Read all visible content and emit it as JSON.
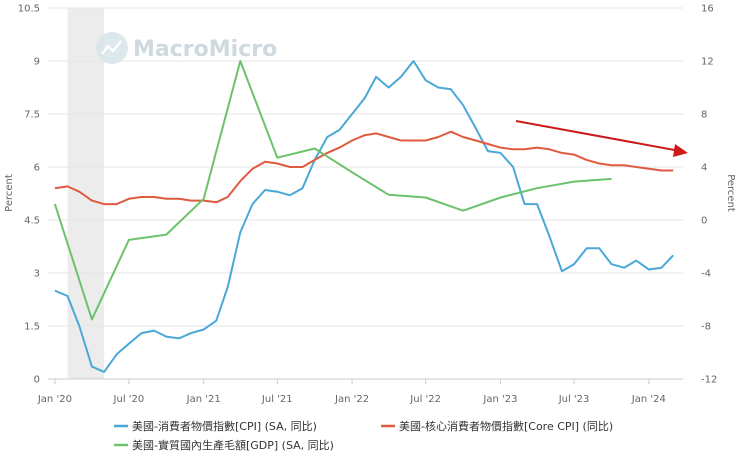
{
  "watermark": {
    "text": "MacroMicro"
  },
  "chart_data": {
    "type": "line",
    "ylabel": "Percent",
    "y2label": "Percent",
    "ylim": [
      0,
      10.5
    ],
    "y2lim": [
      -12,
      16
    ],
    "yticks": [
      "0",
      "1.5",
      "3",
      "4.5",
      "6",
      "7.5",
      "9",
      "10.5"
    ],
    "y2ticks": [
      "-12",
      "-8",
      "-4",
      "0",
      "4",
      "8",
      "12",
      "16"
    ],
    "xlim": [
      "2019-12-15",
      "2024-03-25"
    ],
    "xticks": [
      {
        "label": "Jan '20",
        "date": "2020-01-01"
      },
      {
        "label": "Jul '20",
        "date": "2020-07-01"
      },
      {
        "label": "Jan '21",
        "date": "2021-01-01"
      },
      {
        "label": "Jul '21",
        "date": "2021-07-01"
      },
      {
        "label": "Jan '22",
        "date": "2022-01-01"
      },
      {
        "label": "Jul '22",
        "date": "2022-07-01"
      },
      {
        "label": "Jan '23",
        "date": "2023-01-01"
      },
      {
        "label": "Jul '23",
        "date": "2023-07-01"
      },
      {
        "label": "Jan '24",
        "date": "2024-01-01"
      }
    ],
    "recession_band": [
      "2020-02-01",
      "2020-05-01"
    ],
    "legend_position": "bottom",
    "series": [
      {
        "name": "美國-消費者物價指數[CPI] (SA, 同比)",
        "color": "#4aa8d8",
        "axis": "left",
        "points": [
          [
            "2020-01-01",
            2.5
          ],
          [
            "2020-02-01",
            2.35
          ],
          [
            "2020-03-01",
            1.5
          ],
          [
            "2020-04-01",
            0.35
          ],
          [
            "2020-05-01",
            0.2
          ],
          [
            "2020-06-01",
            0.7
          ],
          [
            "2020-07-01",
            1.0
          ],
          [
            "2020-08-01",
            1.3
          ],
          [
            "2020-09-01",
            1.37
          ],
          [
            "2020-10-01",
            1.2
          ],
          [
            "2020-11-01",
            1.15
          ],
          [
            "2020-12-01",
            1.3
          ],
          [
            "2021-01-01",
            1.4
          ],
          [
            "2021-02-01",
            1.65
          ],
          [
            "2021-03-01",
            2.6
          ],
          [
            "2021-04-01",
            4.15
          ],
          [
            "2021-05-01",
            4.95
          ],
          [
            "2021-06-01",
            5.35
          ],
          [
            "2021-07-01",
            5.3
          ],
          [
            "2021-08-01",
            5.2
          ],
          [
            "2021-09-01",
            5.4
          ],
          [
            "2021-10-01",
            6.2
          ],
          [
            "2021-11-01",
            6.85
          ],
          [
            "2021-12-01",
            7.05
          ],
          [
            "2022-01-01",
            7.5
          ],
          [
            "2022-02-01",
            7.95
          ],
          [
            "2022-03-01",
            8.55
          ],
          [
            "2022-04-01",
            8.25
          ],
          [
            "2022-05-01",
            8.55
          ],
          [
            "2022-06-01",
            9.0
          ],
          [
            "2022-07-01",
            8.45
          ],
          [
            "2022-08-01",
            8.25
          ],
          [
            "2022-09-01",
            8.2
          ],
          [
            "2022-10-01",
            7.75
          ],
          [
            "2022-11-01",
            7.1
          ],
          [
            "2022-12-01",
            6.45
          ],
          [
            "2023-01-01",
            6.4
          ],
          [
            "2023-02-01",
            6.0
          ],
          [
            "2023-03-01",
            4.95
          ],
          [
            "2023-04-01",
            4.95
          ],
          [
            "2023-05-01",
            4.05
          ],
          [
            "2023-06-01",
            3.05
          ],
          [
            "2023-07-01",
            3.25
          ],
          [
            "2023-08-01",
            3.7
          ],
          [
            "2023-09-01",
            3.7
          ],
          [
            "2023-10-01",
            3.25
          ],
          [
            "2023-11-01",
            3.15
          ],
          [
            "2023-12-01",
            3.35
          ],
          [
            "2024-01-01",
            3.1
          ],
          [
            "2024-02-01",
            3.15
          ],
          [
            "2024-03-01",
            3.5
          ]
        ]
      },
      {
        "name": "美國-核心消費者物價指數[Core CPI] (同比)",
        "color": "#e05a40",
        "axis": "left",
        "points": [
          [
            "2020-01-01",
            5.4
          ],
          [
            "2020-02-01",
            5.45
          ],
          [
            "2020-03-01",
            5.3
          ],
          [
            "2020-04-01",
            5.05
          ],
          [
            "2020-05-01",
            4.95
          ],
          [
            "2020-06-01",
            4.95
          ],
          [
            "2020-07-01",
            5.1
          ],
          [
            "2020-08-01",
            5.15
          ],
          [
            "2020-09-01",
            5.15
          ],
          [
            "2020-10-01",
            5.1
          ],
          [
            "2020-11-01",
            5.1
          ],
          [
            "2020-12-01",
            5.05
          ],
          [
            "2021-01-01",
            5.05
          ],
          [
            "2021-02-01",
            5.0
          ],
          [
            "2021-03-01",
            5.15
          ],
          [
            "2021-04-01",
            5.6
          ],
          [
            "2021-05-01",
            5.95
          ],
          [
            "2021-06-01",
            6.15
          ],
          [
            "2021-07-01",
            6.1
          ],
          [
            "2021-08-01",
            6.0
          ],
          [
            "2021-09-01",
            6.0
          ],
          [
            "2021-10-01",
            6.2
          ],
          [
            "2021-11-01",
            6.4
          ],
          [
            "2021-12-01",
            6.55
          ],
          [
            "2022-01-01",
            6.75
          ],
          [
            "2022-02-01",
            6.9
          ],
          [
            "2022-03-01",
            6.95
          ],
          [
            "2022-04-01",
            6.85
          ],
          [
            "2022-05-01",
            6.75
          ],
          [
            "2022-06-01",
            6.75
          ],
          [
            "2022-07-01",
            6.75
          ],
          [
            "2022-08-01",
            6.85
          ],
          [
            "2022-09-01",
            7.0
          ],
          [
            "2022-10-01",
            6.85
          ],
          [
            "2022-11-01",
            6.75
          ],
          [
            "2022-12-01",
            6.65
          ],
          [
            "2023-01-01",
            6.55
          ],
          [
            "2023-02-01",
            6.5
          ],
          [
            "2023-03-01",
            6.5
          ],
          [
            "2023-04-01",
            6.55
          ],
          [
            "2023-05-01",
            6.5
          ],
          [
            "2023-06-01",
            6.4
          ],
          [
            "2023-07-01",
            6.35
          ],
          [
            "2023-08-01",
            6.2
          ],
          [
            "2023-09-01",
            6.1
          ],
          [
            "2023-10-01",
            6.05
          ],
          [
            "2023-11-01",
            6.05
          ],
          [
            "2023-12-01",
            6.0
          ],
          [
            "2024-01-01",
            5.95
          ],
          [
            "2024-02-01",
            5.9
          ],
          [
            "2024-03-01",
            5.9
          ]
        ]
      },
      {
        "name": "美國-實質國內生產毛額[GDP] (SA, 同比)",
        "color": "#6cc26c",
        "axis": "right",
        "points": [
          [
            "2020-01-01",
            1.2
          ],
          [
            "2020-04-01",
            -7.5
          ],
          [
            "2020-07-01",
            -1.5
          ],
          [
            "2020-10-01",
            -1.1
          ],
          [
            "2021-01-01",
            1.6
          ],
          [
            "2021-04-01",
            12.0
          ],
          [
            "2021-07-01",
            4.7
          ],
          [
            "2021-10-01",
            5.4
          ],
          [
            "2022-01-01",
            3.6
          ],
          [
            "2022-04-01",
            1.9
          ],
          [
            "2022-07-01",
            1.7
          ],
          [
            "2022-10-01",
            0.7
          ],
          [
            "2023-01-01",
            1.7
          ],
          [
            "2023-04-01",
            2.4
          ],
          [
            "2023-07-01",
            2.9
          ],
          [
            "2023-10-01",
            3.1
          ]
        ]
      }
    ],
    "annotations": [
      {
        "type": "arrow",
        "color": "#cc1a1a",
        "description": "downward trend arrow"
      }
    ]
  }
}
